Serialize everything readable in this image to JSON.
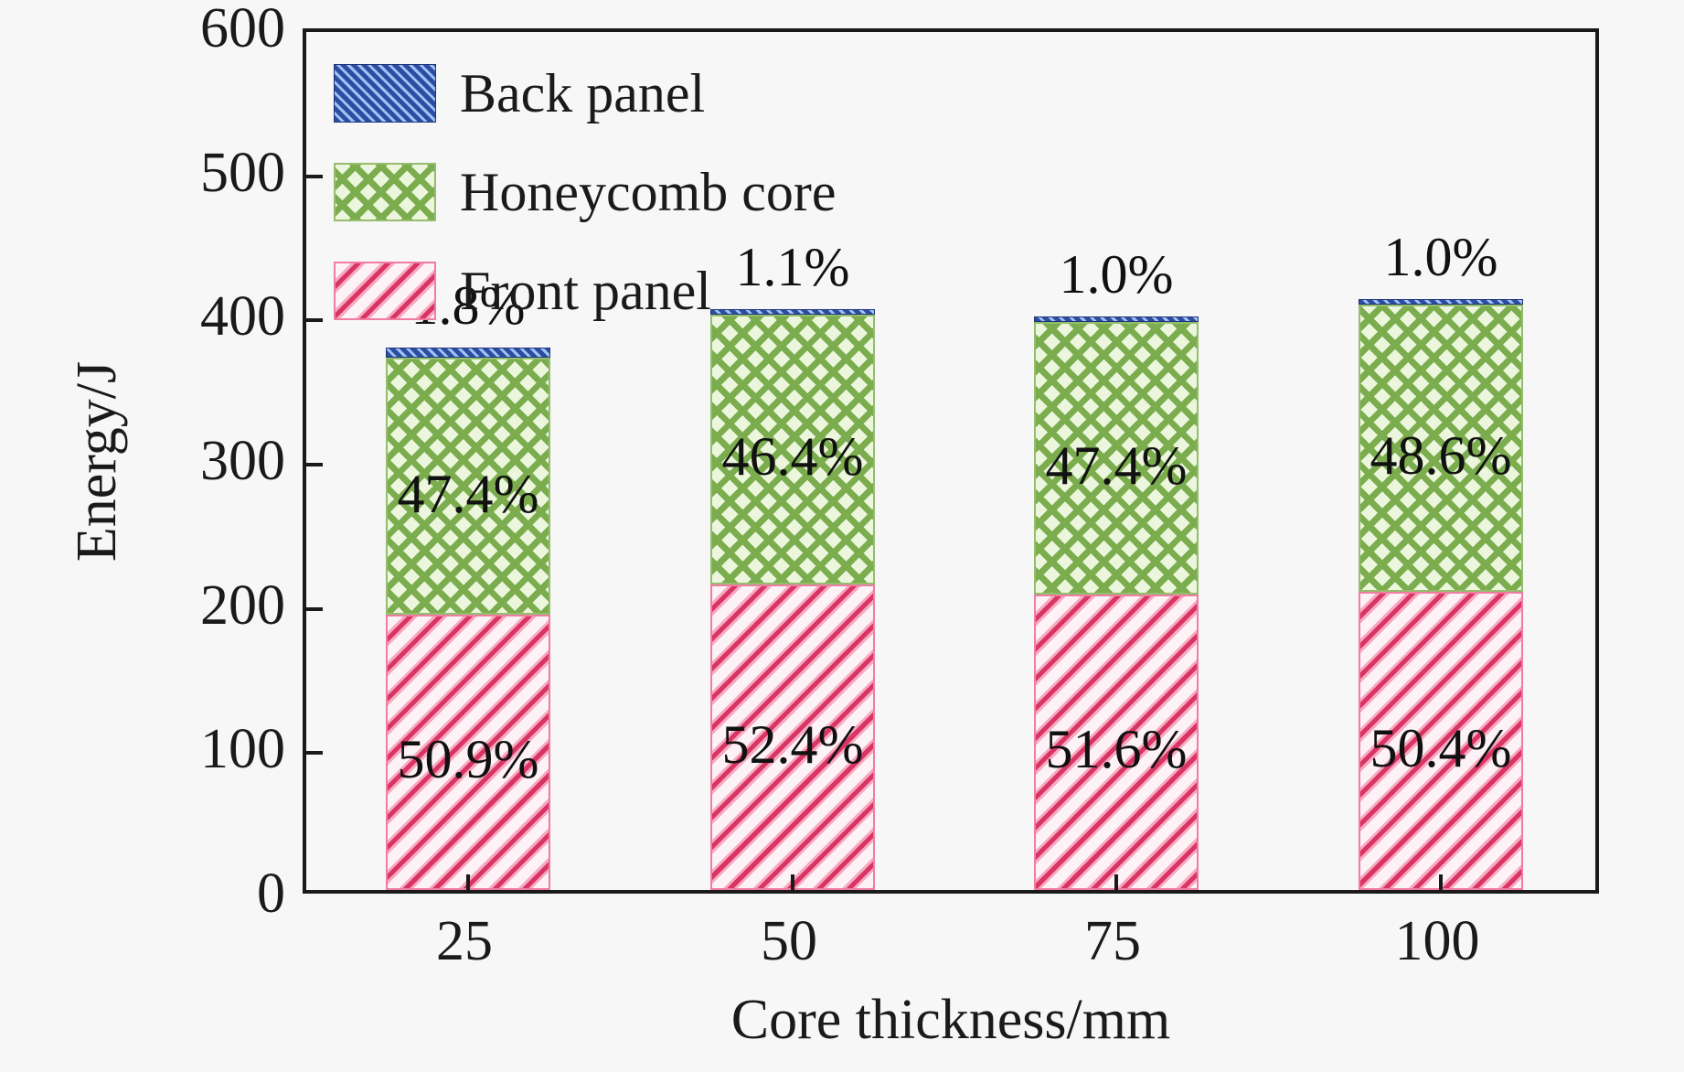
{
  "chart_data": {
    "type": "bar",
    "stacked": true,
    "xlabel": "Core thickness/mm",
    "ylabel": "Energy/J",
    "ylim": [
      0,
      600
    ],
    "ytick_interval": 100,
    "yticks": [
      "0",
      "100",
      "200",
      "300",
      "400",
      "500",
      "600"
    ],
    "categories": [
      "25",
      "50",
      "75",
      "100"
    ],
    "totals_J": [
      375,
      404,
      398,
      410
    ],
    "series": [
      {
        "name": "Front panel",
        "pattern": "front",
        "values": [
          191,
          212,
          205,
          207
        ],
        "pct_labels": [
          "50.9%",
          "52.4%",
          "51.6%",
          "50.4%"
        ]
      },
      {
        "name": "Honeycomb core",
        "pattern": "core",
        "values": [
          178,
          187,
          189,
          199
        ],
        "pct_labels": [
          "47.4%",
          "46.4%",
          "47.4%",
          "48.6%"
        ]
      },
      {
        "name": "Back panel",
        "pattern": "back",
        "values": [
          7,
          4,
          4,
          4
        ],
        "pct_labels": [
          "1.8%",
          "1.1%",
          "1.0%",
          "1.0%"
        ]
      }
    ],
    "legend": [
      {
        "label": "Back panel",
        "pattern": "back"
      },
      {
        "label": "Honeycomb core",
        "pattern": "core"
      },
      {
        "label": "Front panel",
        "pattern": "front"
      }
    ],
    "legend_position": "upper-left",
    "grid": false,
    "colors": {
      "background": "#f7f7f7",
      "frame": "#1a1a1a",
      "text": "#111111",
      "front_stripe": "#d93562",
      "front_stripe_edge": "#f7a8c2",
      "front_bg": "#fdf2f5",
      "core_line": "#7bad4e",
      "core_bg": "#ebf6dc",
      "back_fill": "#2d4da3",
      "back_stripe": "#9fc2f5"
    }
  }
}
